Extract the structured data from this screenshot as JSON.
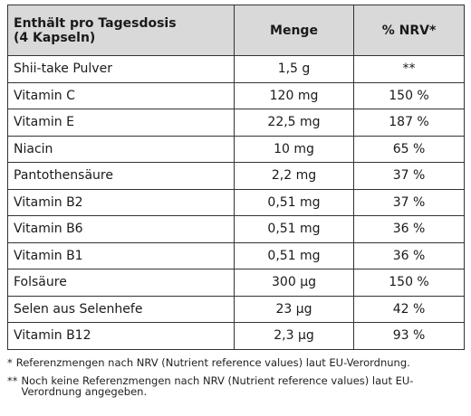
{
  "table": {
    "header": [
      [
        "Enthält pro Tagesdosis",
        "(4 Kapseln)"
      ],
      [
        "Menge"
      ],
      [
        "% NRV*"
      ]
    ],
    "rows": [
      [
        "Shii-take Pulver",
        "1,5 g",
        "**"
      ],
      [
        "Vitamin C",
        "120 mg",
        "150 %"
      ],
      [
        "Vitamin E",
        "22,5 mg",
        "187 %"
      ],
      [
        "Niacin",
        "10 mg",
        "65 %"
      ],
      [
        "Pantothensäure",
        "2,2 mg",
        "37 %"
      ],
      [
        "Vitamin B2",
        "0,51 mg",
        "37 %"
      ],
      [
        "Vitamin B6",
        "0,51 mg",
        "36 %"
      ],
      [
        "Vitamin B1",
        "0,51 mg",
        "36 %"
      ],
      [
        "Folsäure",
        "300 µg",
        "150 %"
      ],
      [
        "Selen aus Selenhefe",
        "23 µg",
        "42 %"
      ],
      [
        "Vitamin B12",
        "2,3 µg",
        "93 %"
      ]
    ]
  },
  "footnotes": [
    {
      "marker": "*",
      "text": "Referenzmengen nach NRV (Nutrient reference values) laut EU-Verordnung."
    },
    {
      "marker": "**",
      "text": "Noch keine Referenzmengen nach NRV (Nutrient reference values) laut EU-Verordnung angegeben."
    }
  ]
}
